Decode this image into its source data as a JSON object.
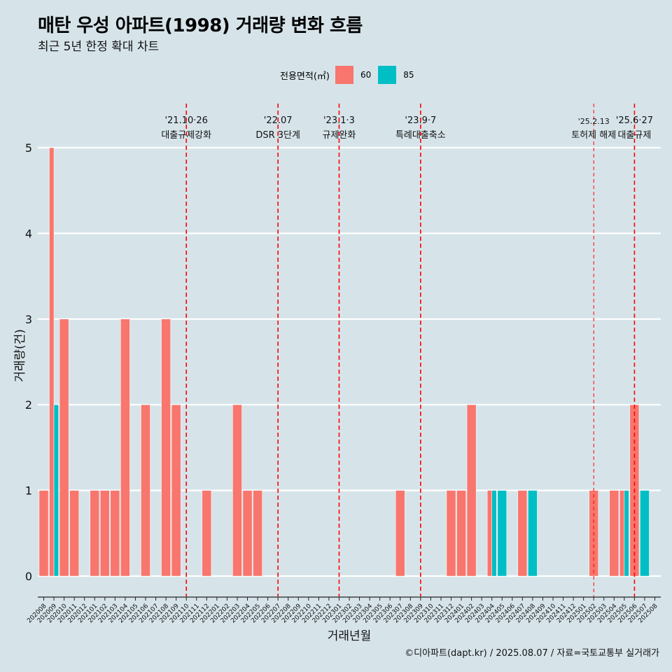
{
  "header": {
    "title": "매탄 우성 아파트(1998) 거래량 변화 흐름",
    "subtitle": "최근 5년 한정 확대 차트"
  },
  "legend": {
    "title": "전용면적(㎡)",
    "items": [
      {
        "label": "60",
        "color": "#f8766d"
      },
      {
        "label": "85",
        "color": "#00bfc4"
      }
    ]
  },
  "caption": "©디아파트(dapt.kr) / 2025.08.07 / 자료=국토교통부 실거래가",
  "chart_data": {
    "type": "bar",
    "xlabel": "거래년월",
    "ylabel": "거래량(건)",
    "ylim": [
      0,
      5
    ],
    "yticks": [
      0,
      1,
      2,
      3,
      4,
      5
    ],
    "grid": true,
    "legend_position": "top",
    "categories": [
      "202008",
      "202009",
      "202010",
      "202011",
      "202012",
      "202101",
      "202102",
      "202103",
      "202104",
      "202105",
      "202106",
      "202107",
      "202108",
      "202109",
      "202110",
      "202111",
      "202112",
      "202201",
      "202202",
      "202203",
      "202204",
      "202205",
      "202206",
      "202207",
      "202208",
      "202209",
      "202210",
      "202211",
      "202212",
      "202301",
      "202302",
      "202303",
      "202304",
      "202305",
      "202306",
      "202307",
      "202308",
      "202309",
      "202310",
      "202311",
      "202312",
      "202401",
      "202402",
      "202403",
      "202404",
      "202405",
      "202406",
      "202407",
      "202408",
      "202409",
      "202410",
      "202411",
      "202412",
      "202501",
      "202502",
      "202503",
      "202504",
      "202505",
      "202506",
      "202507",
      "202508"
    ],
    "series": [
      {
        "name": "60",
        "color": "#f8766d",
        "values": [
          1,
          5,
          3,
          1,
          0,
          1,
          1,
          1,
          3,
          0,
          2,
          0,
          3,
          2,
          0,
          0,
          1,
          0,
          0,
          2,
          1,
          1,
          0,
          0,
          0,
          0,
          0,
          0,
          0,
          0,
          0,
          0,
          0,
          0,
          0,
          1,
          0,
          0,
          0,
          0,
          1,
          1,
          2,
          0,
          1,
          0,
          0,
          1,
          0,
          0,
          0,
          0,
          0,
          0,
          1,
          0,
          1,
          1,
          2,
          0,
          0
        ]
      },
      {
        "name": "85",
        "color": "#00bfc4",
        "values": [
          0,
          2,
          0,
          0,
          0,
          0,
          0,
          0,
          0,
          0,
          0,
          0,
          0,
          0,
          0,
          0,
          0,
          0,
          0,
          0,
          0,
          0,
          0,
          0,
          0,
          0,
          0,
          0,
          0,
          0,
          0,
          0,
          0,
          0,
          0,
          0,
          0,
          0,
          0,
          0,
          0,
          0,
          0,
          0,
          1,
          1,
          0,
          0,
          1,
          0,
          0,
          0,
          0,
          0,
          0,
          0,
          0,
          1,
          0,
          1,
          0
        ]
      }
    ],
    "events": [
      {
        "x": 14.0,
        "date": "'21.10·26",
        "label": "대출규제강화",
        "style": "bold"
      },
      {
        "x": 23.0,
        "date": "'22.07",
        "label": "DSR 3단계",
        "style": "bold"
      },
      {
        "x": 29.0,
        "date": "'23.1·3",
        "label": "규제완화",
        "style": "bold"
      },
      {
        "x": 37.0,
        "date": "'23.9·7",
        "label": "특례대출축소",
        "style": "bold"
      },
      {
        "x": 54.0,
        "date": "'25.2.13",
        "label": "토허제 해제",
        "style": "thin"
      },
      {
        "x": 58.0,
        "date": "'25.6·27",
        "label": "대출규제",
        "style": "bold"
      }
    ]
  }
}
